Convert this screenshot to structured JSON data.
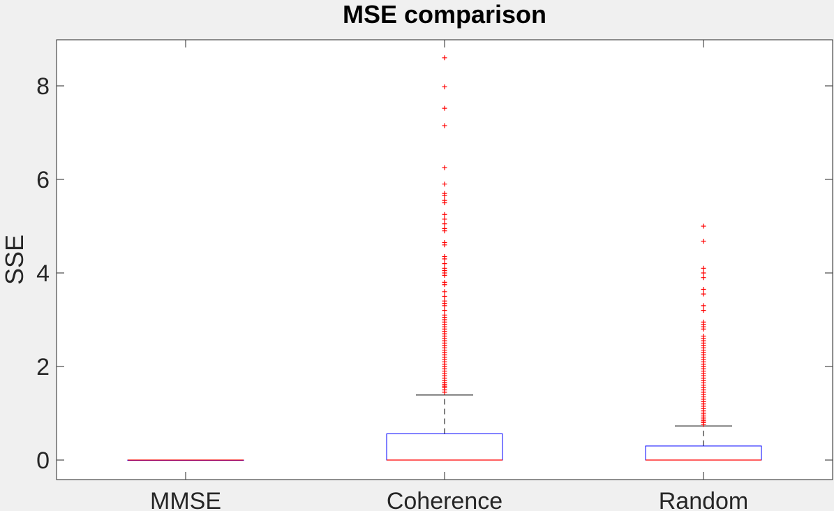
{
  "chart_data": {
    "type": "boxplot",
    "title": "MSE comparison",
    "xlabel": "",
    "ylabel": "SSE",
    "ylim": [
      -0.43,
      9
    ],
    "yticks": [
      0,
      2,
      4,
      6,
      8
    ],
    "grid": false,
    "colors": {
      "box": "#0000ff",
      "median": "#ff0000",
      "outlier": "#ff0000",
      "whisker": "#000000"
    },
    "categories": [
      "MMSE",
      "Coherence",
      "Random"
    ],
    "boxes": [
      {
        "name": "MMSE",
        "min": 0,
        "q1": 0,
        "median": 0,
        "q3": 0,
        "max": 0,
        "outliers": []
      },
      {
        "name": "Coherence",
        "min": 0,
        "q1": 0,
        "median": 0,
        "q3": 0.56,
        "max": 1.39,
        "outliers": [
          1.45,
          1.5,
          1.55,
          1.58,
          1.62,
          1.66,
          1.7,
          1.75,
          1.8,
          1.85,
          1.9,
          1.95,
          2.0,
          2.05,
          2.1,
          2.15,
          2.2,
          2.25,
          2.3,
          2.35,
          2.4,
          2.45,
          2.5,
          2.55,
          2.6,
          2.65,
          2.7,
          2.75,
          2.8,
          2.85,
          2.9,
          2.95,
          3.0,
          3.05,
          3.1,
          3.2,
          3.3,
          3.35,
          3.4,
          3.5,
          3.6,
          3.75,
          3.8,
          3.95,
          4.0,
          4.05,
          4.1,
          4.2,
          4.3,
          4.35,
          4.6,
          4.65,
          4.9,
          4.95,
          5.05,
          5.15,
          5.25,
          5.5,
          5.55,
          5.65,
          5.7,
          5.9,
          6.25,
          7.15,
          7.52,
          7.98,
          8.6
        ]
      },
      {
        "name": "Random",
        "min": 0,
        "q1": 0,
        "median": 0,
        "q3": 0.3,
        "max": 0.73,
        "outliers": [
          0.76,
          0.8,
          0.84,
          0.88,
          0.92,
          0.96,
          1.0,
          1.05,
          1.1,
          1.15,
          1.2,
          1.25,
          1.3,
          1.35,
          1.4,
          1.45,
          1.5,
          1.55,
          1.6,
          1.65,
          1.7,
          1.75,
          1.8,
          1.85,
          1.9,
          1.95,
          2.0,
          2.05,
          2.1,
          2.15,
          2.2,
          2.25,
          2.3,
          2.35,
          2.4,
          2.45,
          2.5,
          2.55,
          2.6,
          2.65,
          2.8,
          2.85,
          2.9,
          2.95,
          3.2,
          3.3,
          3.55,
          3.65,
          3.9,
          4.0,
          4.1,
          4.68,
          5.0
        ]
      }
    ]
  }
}
